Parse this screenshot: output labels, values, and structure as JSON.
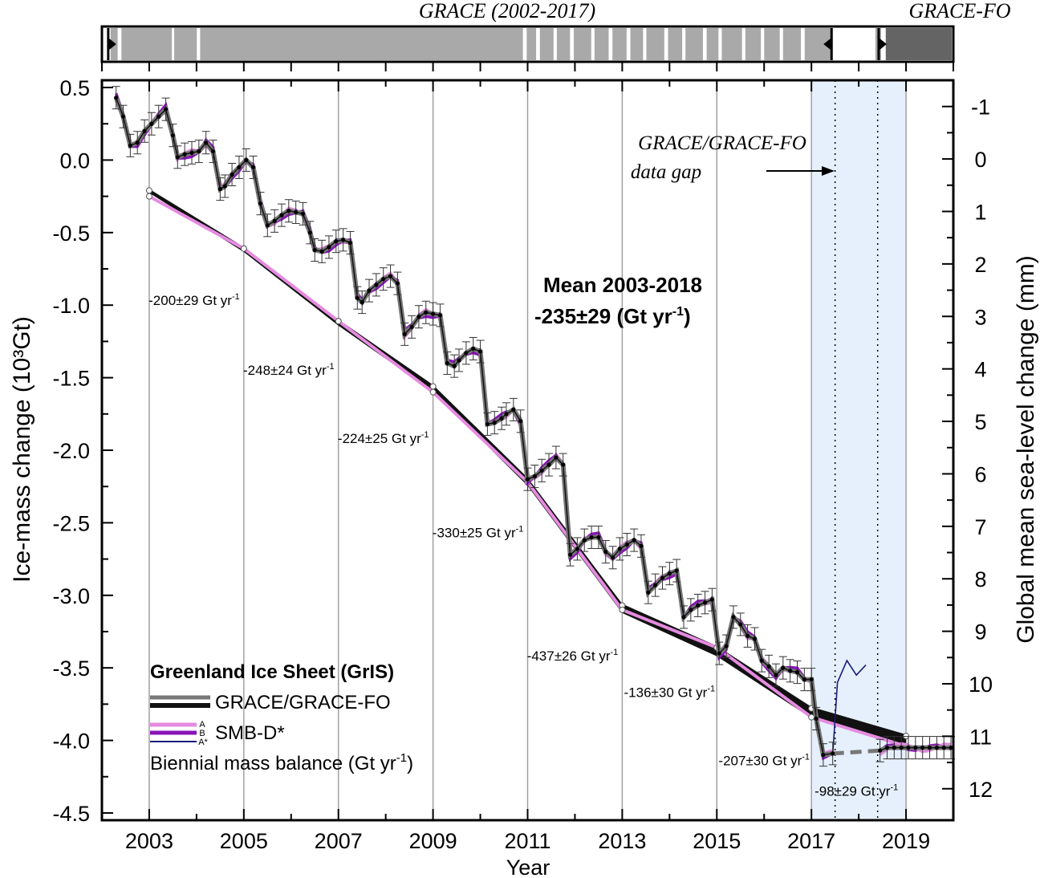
{
  "timeline": {
    "grace_label": "GRACE (2002-2017)",
    "gracefo_label": "GRACE-FO"
  },
  "chart_data": {
    "type": "line",
    "xlabel": "Year",
    "ylabel_left": "Ice-mass change (10³Gt)",
    "ylabel_right": "Global mean sea-level change (mm)",
    "xlim": [
      2002.0,
      2020.0
    ],
    "ylim_left": [
      -4.55,
      0.55
    ],
    "ylim_right_mm": [
      -1.5,
      12.6
    ],
    "x_ticks": [
      2003,
      2005,
      2007,
      2009,
      2011,
      2013,
      2015,
      2017,
      2019
    ],
    "y_ticks_left": [
      0.5,
      0.0,
      -0.5,
      -1.0,
      -1.5,
      -2.0,
      -2.5,
      -3.0,
      -3.5,
      -4.0,
      -4.5
    ],
    "y_ticks_right": [
      -1,
      0,
      1,
      2,
      3,
      4,
      5,
      6,
      7,
      8,
      9,
      10,
      11,
      12
    ],
    "grid": "vertical at labelled years",
    "gap_region": [
      2017.0,
      2019.0
    ],
    "gap_lines": [
      2017.5,
      2018.4
    ],
    "gap_label": [
      "GRACE/GRACE-FO",
      "data gap"
    ],
    "mean_label": [
      "Mean 2003-2018",
      "-235±29 (Gt yr",
      "-1",
      ")"
    ],
    "legend": {
      "title": "Greenland Ice Sheet (GrIS)",
      "grace": "GRACE/GRACE-FO",
      "smb": "SMB-D*",
      "smb_letters": [
        "A",
        "B",
        "A*"
      ],
      "biennial": "Biennial mass balance (Gt yr",
      "biennial_sup": "-1",
      "biennial_end": ")"
    },
    "colors": {
      "grace": "#111111",
      "grace_gray": "#777777",
      "smb_a": "#e58be0",
      "smb_b": "#8a12b8",
      "smb_astar": "#1a1a7a",
      "gap_fill": "#e5f0fc"
    },
    "series": [
      {
        "name": "GRACE/GRACE-FO",
        "x": [
          2002.3,
          2002.45,
          2002.6,
          2002.75,
          2002.9,
          2003.05,
          2003.2,
          2003.35,
          2003.5,
          2003.6,
          2003.75,
          2003.9,
          2004.05,
          2004.2,
          2004.35,
          2004.5,
          2004.6,
          2004.75,
          2004.9,
          2005.05,
          2005.2,
          2005.35,
          2005.5,
          2005.65,
          2005.8,
          2005.95,
          2006.1,
          2006.25,
          2006.4,
          2006.5,
          2006.65,
          2006.8,
          2006.95,
          2007.1,
          2007.25,
          2007.4,
          2007.5,
          2007.65,
          2007.8,
          2007.95,
          2008.1,
          2008.25,
          2008.4,
          2008.55,
          2008.7,
          2008.85,
          2009.0,
          2009.15,
          2009.3,
          2009.45,
          2009.55,
          2009.7,
          2009.85,
          2010.0,
          2010.15,
          2010.3,
          2010.45,
          2010.55,
          2010.7,
          2010.85,
          2011.0,
          2011.15,
          2011.3,
          2011.45,
          2011.6,
          2011.75,
          2011.9,
          2012.05,
          2012.2,
          2012.35,
          2012.5,
          2012.65,
          2012.8,
          2012.95,
          2013.1,
          2013.25,
          2013.4,
          2013.55,
          2013.7,
          2013.85,
          2014.0,
          2014.15,
          2014.3,
          2014.45,
          2014.6,
          2014.75,
          2014.9,
          2015.05,
          2015.2,
          2015.35,
          2015.5,
          2015.65,
          2015.8,
          2015.95,
          2016.1,
          2016.25,
          2016.4,
          2016.55,
          2016.7,
          2016.85,
          2017.0,
          2017.1,
          2017.25,
          2017.45,
          2018.45,
          2018.6,
          2018.75,
          2018.9,
          2019.05,
          2019.2,
          2019.35,
          2019.5,
          2019.65,
          2019.8,
          2019.95
        ],
        "y": [
          0.43,
          0.3,
          0.1,
          0.12,
          0.2,
          0.25,
          0.3,
          0.35,
          0.17,
          0.02,
          0.04,
          0.05,
          0.06,
          0.12,
          0.06,
          -0.2,
          -0.18,
          -0.1,
          -0.05,
          0.0,
          -0.05,
          -0.3,
          -0.45,
          -0.42,
          -0.38,
          -0.35,
          -0.36,
          -0.37,
          -0.5,
          -0.62,
          -0.63,
          -0.6,
          -0.56,
          -0.55,
          -0.57,
          -0.95,
          -0.98,
          -0.9,
          -0.86,
          -0.82,
          -0.8,
          -0.85,
          -1.2,
          -1.15,
          -1.08,
          -1.05,
          -1.06,
          -1.07,
          -1.4,
          -1.42,
          -1.38,
          -1.33,
          -1.3,
          -1.32,
          -1.82,
          -1.81,
          -1.78,
          -1.75,
          -1.72,
          -1.8,
          -2.2,
          -2.18,
          -2.14,
          -2.1,
          -2.05,
          -2.1,
          -2.72,
          -2.68,
          -2.62,
          -2.6,
          -2.6,
          -2.7,
          -2.74,
          -2.68,
          -2.65,
          -2.62,
          -2.66,
          -2.98,
          -2.93,
          -2.88,
          -2.85,
          -2.83,
          -3.15,
          -3.1,
          -3.07,
          -3.05,
          -3.03,
          -3.4,
          -3.35,
          -3.15,
          -3.2,
          -3.28,
          -3.3,
          -3.45,
          -3.49,
          -3.55,
          -3.5,
          -3.52,
          -3.53,
          -3.58,
          -3.58,
          -3.85,
          -4.1,
          -4.09,
          -4.07,
          -4.05,
          -4.05,
          -4.05,
          -4.05,
          -4.05,
          -4.05,
          -4.05,
          -4.05,
          -4.05,
          -4.05
        ],
        "color": "#111111"
      },
      {
        "name": "biennial-grace",
        "x": [
          2003,
          2005,
          2007,
          2009,
          2011,
          2013,
          2015,
          2017,
          2019
        ],
        "y": [
          -0.21,
          -0.61,
          -1.11,
          -1.56,
          -2.2,
          -3.07,
          -3.36,
          -3.78,
          -3.97
        ],
        "color": "#111111"
      },
      {
        "name": "biennial-smb",
        "x": [
          2003,
          2005,
          2007,
          2009,
          2011,
          2013,
          2015,
          2017,
          2019
        ],
        "y": [
          -0.25,
          -0.61,
          -1.11,
          -1.6,
          -2.22,
          -3.1,
          -3.36,
          -3.84,
          -4.04
        ],
        "color": "#e58be0"
      }
    ],
    "annotations": [
      {
        "x": 2003.95,
        "y": -1.0,
        "base": "-200±29 Gt yr",
        "sup": "-1"
      },
      {
        "x": 2005.95,
        "y": -1.48,
        "base": "-248±24 Gt yr",
        "sup": "-1"
      },
      {
        "x": 2007.95,
        "y": -1.95,
        "base": "-224±25 Gt yr",
        "sup": "-1"
      },
      {
        "x": 2009.95,
        "y": -2.6,
        "base": "-330±25 Gt yr",
        "sup": "-1"
      },
      {
        "x": 2011.95,
        "y": -3.45,
        "base": "-437±26 Gt yr",
        "sup": "-1"
      },
      {
        "x": 2014.0,
        "y": -3.7,
        "base": "-136±30 Gt yr",
        "sup": "-1"
      },
      {
        "x": 2016.0,
        "y": -4.17,
        "base": "-207±30 Gt yr",
        "sup": "-1"
      },
      {
        "x": 2017.95,
        "y": -4.38,
        "base": "-98±29 Gt yr",
        "sup": "-1"
      }
    ]
  }
}
